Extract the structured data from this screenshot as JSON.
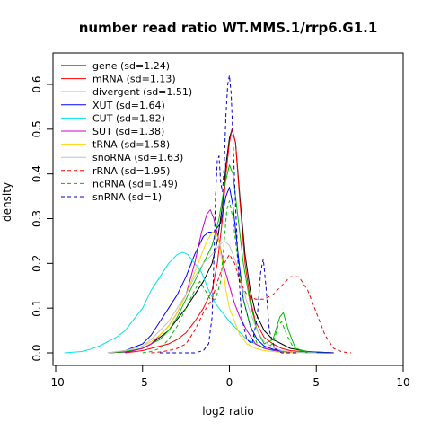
{
  "chart_data": {
    "type": "line",
    "title": "number read ratio WT.MMS.1/rrp6.G1.1",
    "xlabel": "log2 ratio",
    "ylabel": "density",
    "xlim": [
      -10,
      10
    ],
    "ylim": [
      0,
      0.63
    ],
    "x_ticks": [
      -10,
      -5,
      0,
      5,
      10
    ],
    "x_tick_labels": [
      "-10",
      "-5",
      "0",
      "5",
      "10"
    ],
    "y_ticks": [
      0.0,
      0.1,
      0.2,
      0.3,
      0.4,
      0.5,
      0.6
    ],
    "y_tick_labels": [
      "0.0",
      "0.1",
      "0.2",
      "0.3",
      "0.4",
      "0.5",
      "0.6"
    ],
    "grid": false,
    "legend_position": "top-left",
    "series": [
      {
        "name": "gene (sd=1.24)",
        "color": "#000000",
        "dash": "solid",
        "points": [
          [
            -7,
            0
          ],
          [
            -6,
            0.002
          ],
          [
            -5,
            0.01
          ],
          [
            -4.5,
            0.02
          ],
          [
            -4,
            0.035
          ],
          [
            -3.5,
            0.05
          ],
          [
            -3,
            0.075
          ],
          [
            -2.5,
            0.1
          ],
          [
            -2,
            0.13
          ],
          [
            -1.5,
            0.16
          ],
          [
            -1,
            0.2
          ],
          [
            -0.7,
            0.25
          ],
          [
            -0.4,
            0.33
          ],
          [
            -0.2,
            0.42
          ],
          [
            0,
            0.48
          ],
          [
            0.15,
            0.5
          ],
          [
            0.35,
            0.47
          ],
          [
            0.6,
            0.35
          ],
          [
            0.9,
            0.22
          ],
          [
            1.2,
            0.14
          ],
          [
            1.5,
            0.09
          ],
          [
            2,
            0.05
          ],
          [
            2.5,
            0.03
          ],
          [
            3,
            0.02
          ],
          [
            3.5,
            0.01
          ],
          [
            4.5,
            0.003
          ],
          [
            6,
            0
          ]
        ]
      },
      {
        "name": "mRNA (sd=1.13)",
        "color": "#ff0000",
        "dash": "solid",
        "points": [
          [
            -6,
            0
          ],
          [
            -5,
            0.005
          ],
          [
            -4.5,
            0.01
          ],
          [
            -4,
            0.015
          ],
          [
            -3.5,
            0.02
          ],
          [
            -3,
            0.03
          ],
          [
            -2.5,
            0.045
          ],
          [
            -2,
            0.07
          ],
          [
            -1.5,
            0.1
          ],
          [
            -1,
            0.14
          ],
          [
            -0.7,
            0.2
          ],
          [
            -0.4,
            0.3
          ],
          [
            -0.2,
            0.4
          ],
          [
            0,
            0.47
          ],
          [
            0.15,
            0.5
          ],
          [
            0.35,
            0.47
          ],
          [
            0.6,
            0.34
          ],
          [
            0.9,
            0.2
          ],
          [
            1.2,
            0.12
          ],
          [
            1.5,
            0.07
          ],
          [
            2,
            0.035
          ],
          [
            2.5,
            0.02
          ],
          [
            3,
            0.01
          ],
          [
            3.5,
            0.005
          ],
          [
            4.5,
            0.002
          ],
          [
            6,
            0
          ]
        ]
      },
      {
        "name": "divergent (sd=1.51)",
        "color": "#00bb00",
        "dash": "solid",
        "points": [
          [
            -7,
            0
          ],
          [
            -6,
            0.003
          ],
          [
            -5,
            0.01
          ],
          [
            -4,
            0.03
          ],
          [
            -3.5,
            0.05
          ],
          [
            -3,
            0.08
          ],
          [
            -2.5,
            0.12
          ],
          [
            -2,
            0.16
          ],
          [
            -1.5,
            0.2
          ],
          [
            -1,
            0.24
          ],
          [
            -0.6,
            0.3
          ],
          [
            -0.3,
            0.37
          ],
          [
            0,
            0.42
          ],
          [
            0.2,
            0.4
          ],
          [
            0.5,
            0.3
          ],
          [
            0.8,
            0.2
          ],
          [
            1.2,
            0.11
          ],
          [
            1.6,
            0.05
          ],
          [
            2,
            0.02
          ],
          [
            2.5,
            0.03
          ],
          [
            2.9,
            0.08
          ],
          [
            3.1,
            0.09
          ],
          [
            3.4,
            0.05
          ],
          [
            3.8,
            0.01
          ],
          [
            4.5,
            0.002
          ],
          [
            6,
            0
          ]
        ]
      },
      {
        "name": "XUT (sd=1.64)",
        "color": "#0000ff",
        "dash": "solid",
        "points": [
          [
            -7,
            0
          ],
          [
            -6,
            0.005
          ],
          [
            -5,
            0.02
          ],
          [
            -4.5,
            0.04
          ],
          [
            -4,
            0.07
          ],
          [
            -3.5,
            0.1
          ],
          [
            -3,
            0.13
          ],
          [
            -2.5,
            0.17
          ],
          [
            -2,
            0.22
          ],
          [
            -1.5,
            0.26
          ],
          [
            -1.2,
            0.27
          ],
          [
            -0.9,
            0.27
          ],
          [
            -0.5,
            0.29
          ],
          [
            -0.2,
            0.35
          ],
          [
            0,
            0.37
          ],
          [
            0.2,
            0.33
          ],
          [
            0.5,
            0.22
          ],
          [
            0.8,
            0.12
          ],
          [
            1.2,
            0.06
          ],
          [
            1.6,
            0.03
          ],
          [
            2,
            0.015
          ],
          [
            2.5,
            0.008
          ],
          [
            3,
            0.004
          ],
          [
            4,
            0.001
          ],
          [
            6,
            0
          ]
        ]
      },
      {
        "name": "CUT (sd=1.82)",
        "color": "#00e5ee",
        "dash": "solid",
        "points": [
          [
            -9.5,
            0
          ],
          [
            -8.5,
            0.003
          ],
          [
            -8,
            0.008
          ],
          [
            -7.5,
            0.015
          ],
          [
            -7,
            0.025
          ],
          [
            -6.5,
            0.035
          ],
          [
            -6,
            0.05
          ],
          [
            -5.5,
            0.075
          ],
          [
            -5,
            0.1
          ],
          [
            -4.5,
            0.14
          ],
          [
            -4,
            0.17
          ],
          [
            -3.5,
            0.2
          ],
          [
            -3,
            0.22
          ],
          [
            -2.7,
            0.225
          ],
          [
            -2.4,
            0.22
          ],
          [
            -2,
            0.2
          ],
          [
            -1.6,
            0.18
          ],
          [
            -1.2,
            0.14
          ],
          [
            -0.8,
            0.11
          ],
          [
            -0.4,
            0.09
          ],
          [
            0,
            0.07
          ],
          [
            0.5,
            0.05
          ],
          [
            1,
            0.03
          ],
          [
            1.5,
            0.02
          ],
          [
            2,
            0.01
          ],
          [
            2.5,
            0.005
          ],
          [
            3,
            0.003
          ],
          [
            4,
            0.001
          ],
          [
            5,
            0
          ]
        ]
      },
      {
        "name": "SUT (sd=1.38)",
        "color": "#cc00cc",
        "dash": "solid",
        "points": [
          [
            -6,
            0
          ],
          [
            -5,
            0.01
          ],
          [
            -4.5,
            0.02
          ],
          [
            -4,
            0.04
          ],
          [
            -3.5,
            0.06
          ],
          [
            -3,
            0.09
          ],
          [
            -2.5,
            0.13
          ],
          [
            -2,
            0.2
          ],
          [
            -1.6,
            0.27
          ],
          [
            -1.3,
            0.31
          ],
          [
            -1.1,
            0.32
          ],
          [
            -0.9,
            0.3
          ],
          [
            -0.6,
            0.25
          ],
          [
            -0.3,
            0.19
          ],
          [
            0,
            0.15
          ],
          [
            0.3,
            0.11
          ],
          [
            0.6,
            0.08
          ],
          [
            1,
            0.05
          ],
          [
            1.5,
            0.02
          ],
          [
            2,
            0.01
          ],
          [
            3,
            0.002
          ],
          [
            4,
            0
          ]
        ]
      },
      {
        "name": "tRNA (sd=1.58)",
        "color": "#ffd700",
        "dash": "solid",
        "points": [
          [
            -7,
            0
          ],
          [
            -6,
            0.005
          ],
          [
            -5,
            0.015
          ],
          [
            -4.5,
            0.025
          ],
          [
            -4,
            0.04
          ],
          [
            -3.5,
            0.06
          ],
          [
            -3,
            0.09
          ],
          [
            -2.5,
            0.13
          ],
          [
            -2,
            0.18
          ],
          [
            -1.6,
            0.22
          ],
          [
            -1.3,
            0.25
          ],
          [
            -1,
            0.27
          ],
          [
            -0.8,
            0.27
          ],
          [
            -0.6,
            0.25
          ],
          [
            -0.4,
            0.2
          ],
          [
            -0.2,
            0.14
          ],
          [
            0,
            0.1
          ],
          [
            0.3,
            0.07
          ],
          [
            0.6,
            0.04
          ],
          [
            1,
            0.02
          ],
          [
            1.5,
            0.01
          ],
          [
            2,
            0.005
          ],
          [
            3,
            0.001
          ],
          [
            4,
            0
          ]
        ]
      },
      {
        "name": "snoRNA (sd=1.63)",
        "color": "#c0c0c0",
        "dash": "solid",
        "points": [
          [
            -7,
            0
          ],
          [
            -6,
            0.005
          ],
          [
            -5,
            0.015
          ],
          [
            -4.5,
            0.03
          ],
          [
            -4,
            0.05
          ],
          [
            -3.5,
            0.07
          ],
          [
            -3,
            0.1
          ],
          [
            -2.5,
            0.13
          ],
          [
            -2,
            0.17
          ],
          [
            -1.5,
            0.2
          ],
          [
            -1,
            0.22
          ],
          [
            -0.6,
            0.24
          ],
          [
            -0.3,
            0.25
          ],
          [
            0,
            0.24
          ],
          [
            0.4,
            0.2
          ],
          [
            0.8,
            0.14
          ],
          [
            1.2,
            0.09
          ],
          [
            1.6,
            0.05
          ],
          [
            2,
            0.025
          ],
          [
            2.5,
            0.012
          ],
          [
            3,
            0.005
          ],
          [
            4,
            0.001
          ],
          [
            5,
            0
          ]
        ]
      },
      {
        "name": "rRNA (sd=1.95)",
        "color": "#ff0000",
        "dash": "dashed",
        "points": [
          [
            -4.5,
            0
          ],
          [
            -4,
            0.002
          ],
          [
            -3.5,
            0.005
          ],
          [
            -3,
            0.01
          ],
          [
            -2.5,
            0.02
          ],
          [
            -2,
            0.05
          ],
          [
            -1.5,
            0.09
          ],
          [
            -1,
            0.12
          ],
          [
            -0.6,
            0.17
          ],
          [
            -0.3,
            0.2
          ],
          [
            0,
            0.22
          ],
          [
            0.3,
            0.2
          ],
          [
            0.6,
            0.16
          ],
          [
            1,
            0.13
          ],
          [
            1.5,
            0.12
          ],
          [
            2,
            0.12
          ],
          [
            2.5,
            0.13
          ],
          [
            3,
            0.15
          ],
          [
            3.5,
            0.17
          ],
          [
            4,
            0.17
          ],
          [
            4.5,
            0.14
          ],
          [
            5,
            0.09
          ],
          [
            5.5,
            0.04
          ],
          [
            6,
            0.01
          ],
          [
            6.5,
            0.002
          ],
          [
            7,
            0
          ]
        ]
      },
      {
        "name": "ncRNA (sd=1.49)",
        "color": "#00bb00",
        "dash": "dashed",
        "points": [
          [
            -5,
            0
          ],
          [
            -4.5,
            0.003
          ],
          [
            -4,
            0.01
          ],
          [
            -3.5,
            0.03
          ],
          [
            -3,
            0.06
          ],
          [
            -2.5,
            0.1
          ],
          [
            -2,
            0.14
          ],
          [
            -1.7,
            0.16
          ],
          [
            -1.4,
            0.14
          ],
          [
            -1.1,
            0.12
          ],
          [
            -0.8,
            0.12
          ],
          [
            -0.5,
            0.16
          ],
          [
            -0.3,
            0.25
          ],
          [
            -0.15,
            0.32
          ],
          [
            0,
            0.34
          ],
          [
            0.2,
            0.3
          ],
          [
            0.5,
            0.2
          ],
          [
            0.8,
            0.12
          ],
          [
            1.2,
            0.06
          ],
          [
            1.6,
            0.02
          ],
          [
            2,
            0.01
          ],
          [
            2.5,
            0.02
          ],
          [
            2.8,
            0.06
          ],
          [
            3,
            0.07
          ],
          [
            3.3,
            0.04
          ],
          [
            3.7,
            0.01
          ],
          [
            4.5,
            0
          ]
        ]
      },
      {
        "name": "snRNA (sd=1)",
        "color": "#0000cc",
        "dash": "dashed",
        "points": [
          [
            -4,
            0
          ],
          [
            -3,
            0
          ],
          [
            -2,
            0
          ],
          [
            -1.5,
            0.005
          ],
          [
            -1.2,
            0.02
          ],
          [
            -1,
            0.08
          ],
          [
            -0.9,
            0.2
          ],
          [
            -0.8,
            0.35
          ],
          [
            -0.7,
            0.43
          ],
          [
            -0.6,
            0.44
          ],
          [
            -0.5,
            0.38
          ],
          [
            -0.4,
            0.36
          ],
          [
            -0.3,
            0.42
          ],
          [
            -0.2,
            0.53
          ],
          [
            -0.1,
            0.6
          ],
          [
            0,
            0.62
          ],
          [
            0.1,
            0.58
          ],
          [
            0.2,
            0.48
          ],
          [
            0.35,
            0.33
          ],
          [
            0.5,
            0.2
          ],
          [
            0.7,
            0.08
          ],
          [
            1,
            0.03
          ],
          [
            1.3,
            0.02
          ],
          [
            1.6,
            0.08
          ],
          [
            1.8,
            0.18
          ],
          [
            1.95,
            0.21
          ],
          [
            2.1,
            0.15
          ],
          [
            2.3,
            0.05
          ],
          [
            2.6,
            0.01
          ],
          [
            3,
            0
          ],
          [
            4,
            0
          ]
        ]
      }
    ]
  }
}
